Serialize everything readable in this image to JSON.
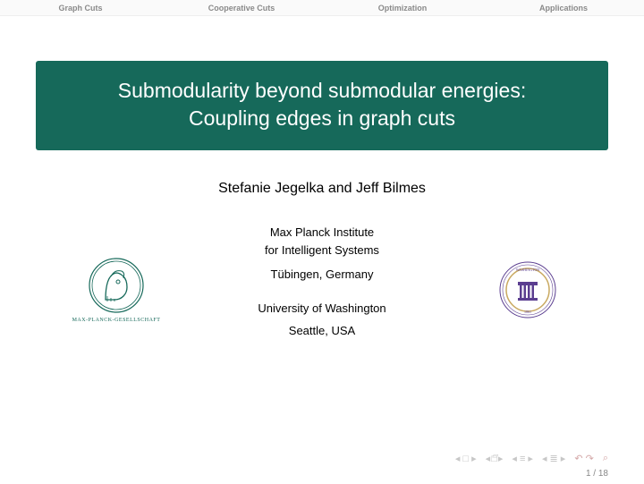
{
  "nav": {
    "tabs": [
      "Graph Cuts",
      "Cooperative Cuts",
      "Optimization",
      "Applications"
    ],
    "tab_color": "#8a8a8a",
    "bg": "#fafafa"
  },
  "title": {
    "line1": "Submodularity beyond submodular energies:",
    "line2": "Coupling edges in graph cuts",
    "bg_color": "#16695a",
    "text_color": "#ffffff",
    "font_size": 23
  },
  "authors": "Stefanie Jegelka and Jeff Bilmes",
  "affiliations": {
    "inst1_line1": "Max Planck Institute",
    "inst1_line2": "for Intelligent Systems",
    "inst1_loc": "Tübingen, Germany",
    "inst2": "University of Washington",
    "inst2_loc": "Seattle, USA"
  },
  "logos": {
    "mpg_label": "MAX-PLANCK-GESELLSCHAFT",
    "mpg_color": "#16695a",
    "uw_purple": "#5b3e90",
    "uw_gold": "#c9a960"
  },
  "footer": {
    "page_current": "1",
    "page_total": "18",
    "icon_color": "#c7c7c7"
  }
}
